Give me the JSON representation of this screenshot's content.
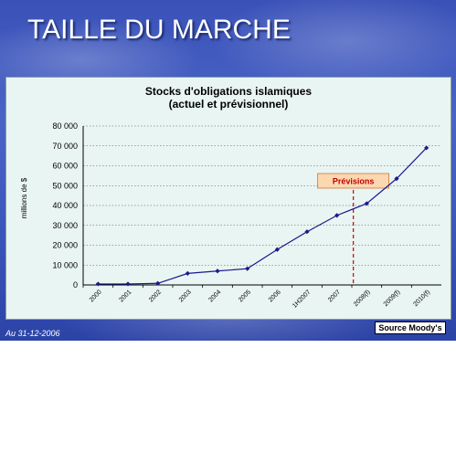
{
  "slide": {
    "title": "TAILLE DU MARCHE",
    "date_note": "Au 31-12-2006",
    "source_note": "Source Moody's"
  },
  "chart_data": {
    "type": "line",
    "title": "Stocks d'obligations islamiques",
    "subtitle": "(actuel et prévisionnel)",
    "ylabel": "millions de $",
    "xlabel": "",
    "categories": [
      "2000",
      "2001",
      "2002",
      "2003",
      "2004",
      "2005",
      "2006",
      "1H2007",
      "2007",
      "2008(f)",
      "2009(f)",
      "2010(f)"
    ],
    "series": [
      {
        "values": [
          500,
          500,
          800,
          5800,
          7000,
          8200,
          17800,
          26800,
          35000,
          41000,
          53500,
          69000
        ]
      }
    ],
    "ylim": [
      0,
      80000
    ],
    "yticks": [
      "0",
      "10 000",
      "20 000",
      "30 000",
      "40 000",
      "50 000",
      "60 000",
      "70 000",
      "80 000"
    ],
    "grid": true,
    "annotation": {
      "label": "Prévisions",
      "after_category": "2007"
    },
    "colors": {
      "line": "#1a1a8c",
      "forecast_line": "#d01010",
      "annotation_box": "#fcd7b0"
    }
  }
}
